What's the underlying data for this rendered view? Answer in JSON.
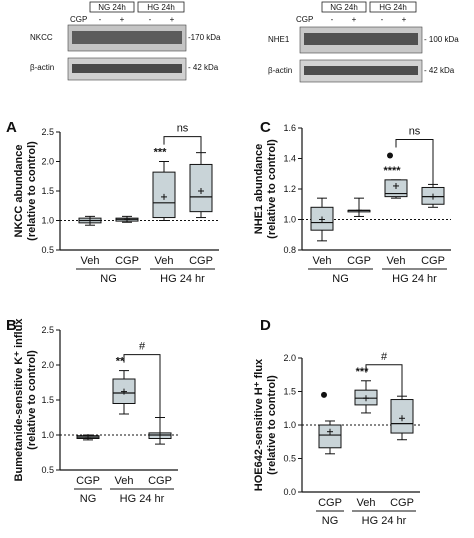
{
  "blot_left": {
    "group_labels": [
      "NG 24h",
      "HG 24h"
    ],
    "cgp_label": "CGP",
    "signs": [
      "-",
      "+",
      "-",
      "+"
    ],
    "rows": [
      {
        "name": "NKCC",
        "marker": "-170 kDa"
      },
      {
        "name": "β-actin",
        "marker": "- 42 kDa"
      }
    ]
  },
  "blot_right": {
    "group_labels": [
      "NG 24h",
      "HG 24h"
    ],
    "cgp_label": "CGP",
    "signs": [
      "-",
      "+",
      "-",
      "+"
    ],
    "rows": [
      {
        "name": "NHE1",
        "marker": "- 100 kDa"
      },
      {
        "name": "β-actin",
        "marker": "- 42 kDa"
      }
    ]
  },
  "chart_data": [
    {
      "panel": "A",
      "type": "box",
      "ylabel": [
        "NKCC abundance",
        "(relative to control)"
      ],
      "ylim": [
        0.5,
        2.5
      ],
      "yticks": [
        "0.5",
        "1.0",
        "1.5",
        "2.0",
        "2.5"
      ],
      "categories": [
        "Veh",
        "CGP",
        "Veh",
        "CGP"
      ],
      "groups": [
        {
          "label": "NG",
          "span": [
            0,
            1
          ]
        },
        {
          "label": "HG 24 hr",
          "span": [
            2,
            3
          ]
        }
      ],
      "reference_line": 1.0,
      "boxes": [
        {
          "min": 0.92,
          "q1": 0.96,
          "median": 1.0,
          "q3": 1.04,
          "max": 1.07,
          "mean": 1.0
        },
        {
          "min": 0.97,
          "q1": 0.99,
          "median": 1.02,
          "q3": 1.04,
          "max": 1.07,
          "mean": 1.02
        },
        {
          "min": 1.0,
          "q1": 1.05,
          "median": 1.3,
          "q3": 1.82,
          "max": 2.0,
          "mean": 1.4
        },
        {
          "min": 1.05,
          "q1": 1.15,
          "median": 1.4,
          "q3": 1.95,
          "max": 2.15,
          "mean": 1.5
        }
      ],
      "annotations": [
        {
          "text": "***",
          "box": 2
        }
      ],
      "brackets": [
        {
          "text": "ns",
          "from": 2,
          "to": 3
        }
      ]
    },
    {
      "panel": "C",
      "type": "box",
      "ylabel": [
        "NHE1 abundance",
        "(relative to control)"
      ],
      "ylim": [
        0.8,
        1.6
      ],
      "yticks": [
        "0.8",
        "1.0",
        "1.2",
        "1.4",
        "1.6"
      ],
      "categories": [
        "Veh",
        "CGP",
        "Veh",
        "CGP"
      ],
      "groups": [
        {
          "label": "NG",
          "span": [
            0,
            1
          ]
        },
        {
          "label": "HG 24 hr",
          "span": [
            2,
            3
          ]
        }
      ],
      "reference_line": 1.0,
      "boxes": [
        {
          "min": 0.86,
          "q1": 0.93,
          "median": 0.98,
          "q3": 1.08,
          "max": 1.14,
          "mean": 1.0
        },
        {
          "min": 1.02,
          "q1": 1.05,
          "median": 1.06,
          "q3": 1.06,
          "max": 1.14,
          "mean": 1.06
        },
        {
          "min": 1.14,
          "q1": 1.15,
          "median": 1.17,
          "q3": 1.26,
          "max": 1.26,
          "mean": 1.22,
          "outliers": [
            1.42
          ]
        },
        {
          "min": 1.08,
          "q1": 1.1,
          "median": 1.15,
          "q3": 1.21,
          "max": 1.23,
          "mean": 1.15
        }
      ],
      "annotations": [
        {
          "text": "****",
          "box": 2
        }
      ],
      "brackets": [
        {
          "text": "ns",
          "from": 2,
          "to": 3
        }
      ]
    },
    {
      "panel": "B",
      "type": "box",
      "ylabel": [
        "Bumetanide-sensitive K⁺ influx",
        "(relative to control)"
      ],
      "ylim": [
        0.5,
        2.5
      ],
      "yticks": [
        "0.5",
        "1.0",
        "1.5",
        "2.0",
        "2.5"
      ],
      "categories": [
        "CGP",
        "Veh",
        "CGP"
      ],
      "groups": [
        {
          "label": "NG",
          "span": [
            0,
            0
          ]
        },
        {
          "label": "HG 24 hr",
          "span": [
            1,
            2
          ]
        }
      ],
      "reference_line": 1.0,
      "boxes": [
        {
          "min": 0.93,
          "q1": 0.95,
          "median": 0.97,
          "q3": 0.99,
          "max": 1.0,
          "mean": 0.97
        },
        {
          "min": 1.3,
          "q1": 1.45,
          "median": 1.6,
          "q3": 1.8,
          "max": 1.92,
          "mean": 1.62
        },
        {
          "min": 0.87,
          "q1": 0.95,
          "median": 1.0,
          "q3": 1.03,
          "max": 1.25,
          "mean": 1.0
        }
      ],
      "annotations": [
        {
          "text": "**",
          "box": 1
        }
      ],
      "brackets": [
        {
          "text": "#",
          "from": 1,
          "to": 2
        }
      ]
    },
    {
      "panel": "D",
      "type": "box",
      "ylabel": [
        "HOE642-sensitive H⁺ flux",
        "(relative to control)"
      ],
      "ylim": [
        0.0,
        2.0
      ],
      "yticks": [
        "0.0",
        "0.5",
        "1.0",
        "1.5",
        "2.0"
      ],
      "categories": [
        "CGP",
        "Veh",
        "CGP"
      ],
      "groups": [
        {
          "label": "NG",
          "span": [
            0,
            0
          ]
        },
        {
          "label": "HG 24 hr",
          "span": [
            1,
            2
          ]
        }
      ],
      "reference_line": 1.0,
      "boxes": [
        {
          "min": 0.57,
          "q1": 0.66,
          "median": 0.85,
          "q3": 1.0,
          "max": 1.06,
          "mean": 0.9,
          "outliers": [
            1.45
          ]
        },
        {
          "min": 1.18,
          "q1": 1.3,
          "median": 1.4,
          "q3": 1.52,
          "max": 1.66,
          "mean": 1.4
        },
        {
          "min": 0.78,
          "q1": 0.88,
          "median": 1.02,
          "q3": 1.38,
          "max": 1.43,
          "mean": 1.1
        }
      ],
      "annotations": [
        {
          "text": "***",
          "box": 1
        }
      ],
      "brackets": [
        {
          "text": "#",
          "from": 1,
          "to": 2
        }
      ]
    }
  ],
  "panel_letters": [
    "A",
    "C",
    "B",
    "D"
  ],
  "colors": {
    "box_fill": "#c9d4d8",
    "blot_bg": "#cfcfcf",
    "blot_band": "#3a3a3a"
  }
}
